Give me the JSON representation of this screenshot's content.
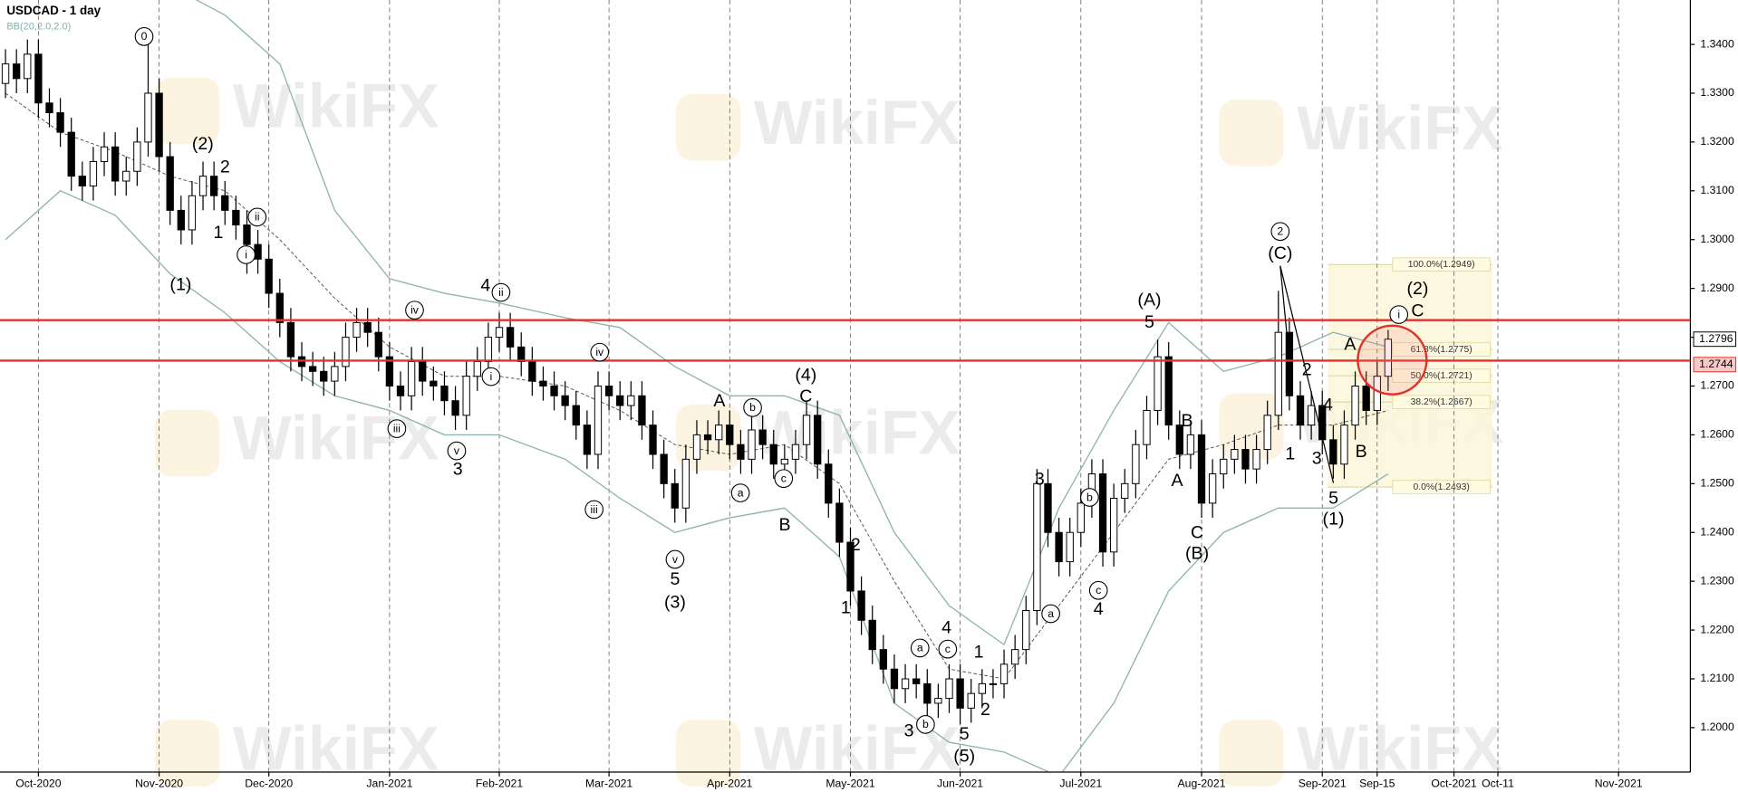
{
  "chart_data": {
    "type": "candlestick",
    "title": "USDCAD - 1 day",
    "indicator": "BB(20,2.0,2.0)",
    "watermark": "WikiFX",
    "categories": [
      null,
      null,
      null,
      "Oct-2020",
      null,
      null,
      null,
      null,
      null,
      null,
      null,
      null,
      null,
      null,
      "Nov-2020",
      null,
      null,
      null,
      null,
      null,
      null,
      null,
      null,
      null,
      "Dec-2020",
      null,
      null,
      null,
      null,
      null,
      null,
      null,
      null,
      null,
      null,
      "Jan-2021",
      null,
      null,
      null,
      null,
      null,
      null,
      null,
      null,
      null,
      "Feb-2021",
      null,
      null,
      null,
      null,
      null,
      null,
      null,
      null,
      null,
      "Mar-2021",
      null,
      null,
      null,
      null,
      null,
      null,
      null,
      null,
      null,
      null,
      "Apr-2021",
      null,
      null,
      null,
      null,
      null,
      null,
      null,
      null,
      null,
      null,
      "May-2021",
      null,
      null,
      null,
      null,
      null,
      null,
      null,
      null,
      null,
      "Jun-2021",
      null,
      null,
      null,
      null,
      null,
      null,
      null,
      null,
      null,
      null,
      "Jul-2021",
      null,
      null,
      null,
      null,
      null,
      null,
      null,
      null,
      null,
      null,
      "Aug-2021",
      null,
      null,
      null,
      null,
      null,
      null,
      null,
      null,
      null,
      null,
      "Sep-2021",
      null,
      null,
      null,
      null,
      "Sep-15",
      null,
      null,
      null,
      null,
      null,
      null,
      "Oct-2021",
      null,
      null,
      null,
      "Oct-11",
      null,
      null,
      null,
      null,
      null,
      null,
      null,
      null,
      null,
      null,
      "Nov-2021",
      null,
      null,
      null,
      null,
      null,
      null
    ],
    "open": [
      1.332,
      1.336,
      1.333,
      1.338,
      1.328,
      1.326,
      1.322,
      1.313,
      1.311,
      1.316,
      1.319,
      1.312,
      1.314,
      1.32,
      1.33,
      1.317,
      1.306,
      1.302,
      1.309,
      1.313,
      1.309,
      1.306,
      1.303,
      1.299,
      1.296,
      1.289,
      1.283,
      1.276,
      1.274,
      1.273,
      1.271,
      1.274,
      1.28,
      1.283,
      1.281,
      1.276,
      1.27,
      1.268,
      1.275,
      1.271,
      1.27,
      1.267,
      1.264,
      1.272,
      1.275,
      1.28,
      1.282,
      1.278,
      1.275,
      1.271,
      1.27,
      1.268,
      1.266,
      1.262,
      1.256,
      1.27,
      1.268,
      1.266,
      1.268,
      1.262,
      1.256,
      1.25,
      1.245,
      1.255,
      1.26,
      1.259,
      1.262,
      1.258,
      1.255,
      1.261,
      1.258,
      1.254,
      1.255,
      1.258,
      1.264,
      1.254,
      1.246,
      1.238,
      1.228,
      1.222,
      1.216,
      1.212,
      1.208,
      1.21,
      1.209,
      1.205,
      1.206,
      1.21,
      1.204,
      1.207,
      1.209,
      1.209,
      1.213,
      1.216,
      1.224,
      1.25,
      1.24,
      1.234,
      1.24,
      1.246,
      1.252,
      1.236,
      1.247,
      1.25,
      1.258,
      1.265,
      1.276,
      1.262,
      1.256,
      1.26,
      1.246,
      1.252,
      1.255,
      1.257,
      1.253,
      1.257,
      1.264,
      1.281,
      1.268,
      1.262,
      1.266,
      1.259,
      1.254,
      1.262,
      1.27,
      1.265,
      1.272,
      null,
      null,
      null,
      null,
      null,
      null,
      null,
      null,
      null,
      null,
      null,
      null,
      null,
      null,
      null,
      null,
      null,
      null,
      null,
      null,
      null,
      null,
      null,
      null,
      null,
      null,
      null
    ],
    "high": [
      1.339,
      1.339,
      1.341,
      1.341,
      1.331,
      1.329,
      1.325,
      1.316,
      1.319,
      1.322,
      1.322,
      1.317,
      1.323,
      1.34,
      1.333,
      1.32,
      1.309,
      1.312,
      1.316,
      1.316,
      1.312,
      1.309,
      1.306,
      1.302,
      1.299,
      1.292,
      1.286,
      1.279,
      1.277,
      1.276,
      1.277,
      1.283,
      1.286,
      1.286,
      1.284,
      1.279,
      1.273,
      1.278,
      1.278,
      1.274,
      1.273,
      1.27,
      1.275,
      1.278,
      1.283,
      1.285,
      1.285,
      1.281,
      1.278,
      1.274,
      1.273,
      1.271,
      1.269,
      1.265,
      1.273,
      1.273,
      1.271,
      1.271,
      1.271,
      1.265,
      1.259,
      1.253,
      1.258,
      1.263,
      1.263,
      1.265,
      1.265,
      1.261,
      1.264,
      1.264,
      1.261,
      1.258,
      1.261,
      1.267,
      1.267,
      1.257,
      1.249,
      1.241,
      1.231,
      1.225,
      1.219,
      1.215,
      1.213,
      1.213,
      1.212,
      1.209,
      1.213,
      1.213,
      1.21,
      1.212,
      1.212,
      1.216,
      1.219,
      1.227,
      1.253,
      1.253,
      1.243,
      1.243,
      1.249,
      1.255,
      1.255,
      1.25,
      1.253,
      1.261,
      1.268,
      1.2795,
      1.279,
      1.265,
      1.263,
      1.263,
      1.255,
      1.258,
      1.26,
      1.26,
      1.26,
      1.267,
      1.2895,
      1.284,
      1.271,
      1.269,
      1.269,
      1.262,
      1.265,
      1.273,
      1.273,
      1.275,
      1.2815,
      null,
      null,
      null,
      null,
      null,
      null,
      null,
      null,
      null,
      null,
      null,
      null,
      null,
      null,
      null,
      null,
      null,
      null,
      null,
      null,
      null,
      null,
      null,
      null,
      null,
      null,
      null
    ],
    "low": [
      1.329,
      1.33,
      1.33,
      1.325,
      1.323,
      1.319,
      1.31,
      1.308,
      1.308,
      1.313,
      1.309,
      1.309,
      1.311,
      1.317,
      1.314,
      1.303,
      1.299,
      1.299,
      1.306,
      1.306,
      1.303,
      1.3,
      1.293,
      1.293,
      1.286,
      1.28,
      1.273,
      1.271,
      1.27,
      1.268,
      1.268,
      1.271,
      1.277,
      1.278,
      1.273,
      1.267,
      1.265,
      1.265,
      1.268,
      1.267,
      1.264,
      1.261,
      1.261,
      1.269,
      1.272,
      1.277,
      1.275,
      1.272,
      1.268,
      1.267,
      1.265,
      1.263,
      1.259,
      1.253,
      1.253,
      1.265,
      1.263,
      1.263,
      1.259,
      1.253,
      1.247,
      1.242,
      1.242,
      1.252,
      1.256,
      1.256,
      1.255,
      1.252,
      1.252,
      1.255,
      1.251,
      1.251,
      1.252,
      1.255,
      1.251,
      1.243,
      1.235,
      1.225,
      1.219,
      1.213,
      1.209,
      1.205,
      1.205,
      1.206,
      1.202,
      1.202,
      1.203,
      1.2007,
      1.201,
      1.204,
      1.206,
      1.206,
      1.21,
      1.213,
      1.221,
      1.237,
      1.231,
      1.231,
      1.237,
      1.243,
      1.233,
      1.233,
      1.244,
      1.247,
      1.255,
      1.262,
      1.259,
      1.253,
      1.253,
      1.243,
      1.243,
      1.249,
      1.252,
      1.25,
      1.25,
      1.254,
      1.261,
      1.265,
      1.259,
      1.259,
      1.256,
      1.251,
      1.251,
      1.259,
      1.262,
      1.262,
      1.269,
      null,
      null,
      null,
      null,
      null,
      null,
      null,
      null,
      null,
      null,
      null,
      null,
      null,
      null,
      null,
      null,
      null,
      null,
      null,
      null,
      null,
      null,
      null,
      null,
      null,
      null,
      null
    ],
    "close": [
      1.336,
      1.333,
      1.338,
      1.328,
      1.326,
      1.322,
      1.313,
      1.311,
      1.316,
      1.319,
      1.312,
      1.314,
      1.32,
      1.33,
      1.317,
      1.306,
      1.302,
      1.309,
      1.313,
      1.309,
      1.306,
      1.303,
      1.299,
      1.296,
      1.289,
      1.283,
      1.276,
      1.274,
      1.273,
      1.271,
      1.274,
      1.28,
      1.283,
      1.281,
      1.276,
      1.27,
      1.268,
      1.275,
      1.271,
      1.27,
      1.267,
      1.264,
      1.272,
      1.275,
      1.28,
      1.282,
      1.278,
      1.275,
      1.271,
      1.27,
      1.268,
      1.266,
      1.262,
      1.256,
      1.27,
      1.268,
      1.266,
      1.268,
      1.262,
      1.256,
      1.25,
      1.245,
      1.255,
      1.26,
      1.259,
      1.262,
      1.258,
      1.255,
      1.261,
      1.258,
      1.254,
      1.255,
      1.258,
      1.264,
      1.254,
      1.246,
      1.238,
      1.228,
      1.222,
      1.216,
      1.212,
      1.208,
      1.21,
      1.209,
      1.205,
      1.206,
      1.21,
      1.204,
      1.207,
      1.209,
      1.209,
      1.213,
      1.216,
      1.224,
      1.25,
      1.24,
      1.234,
      1.24,
      1.246,
      1.252,
      1.236,
      1.247,
      1.25,
      1.258,
      1.265,
      1.276,
      1.262,
      1.256,
      1.26,
      1.246,
      1.252,
      1.255,
      1.257,
      1.253,
      1.257,
      1.264,
      1.281,
      1.268,
      1.262,
      1.266,
      1.259,
      1.254,
      1.262,
      1.27,
      1.265,
      1.272,
      1.2796,
      null,
      null,
      null,
      null,
      null,
      null,
      null,
      null,
      null,
      null,
      null,
      null,
      null,
      null,
      null,
      null,
      null,
      null,
      null,
      null,
      null,
      null,
      null,
      null,
      null,
      null,
      null
    ],
    "up_color": "#ffffff",
    "down_color": "#000000",
    "bands": {
      "color": "#8fb3b3",
      "middle_color": "#555555",
      "x": [
        0,
        5,
        10,
        15,
        20,
        25,
        30,
        35,
        40,
        45,
        51,
        56,
        61,
        66,
        71,
        76,
        81,
        86,
        91,
        96,
        101,
        106,
        111,
        116,
        121,
        126
      ],
      "upper": [
        1.352,
        1.355,
        1.356,
        1.352,
        1.346,
        1.336,
        1.306,
        1.292,
        1.289,
        1.287,
        1.284,
        1.282,
        1.274,
        1.268,
        1.268,
        1.264,
        1.24,
        1.225,
        1.217,
        1.245,
        1.265,
        1.283,
        1.273,
        1.276,
        1.281,
        1.278
      ],
      "middle": [
        1.33,
        1.322,
        1.318,
        1.313,
        1.31,
        1.3,
        1.288,
        1.278,
        1.272,
        1.272,
        1.27,
        1.265,
        1.258,
        1.256,
        1.258,
        1.25,
        1.23,
        1.212,
        1.21,
        1.225,
        1.24,
        1.255,
        1.258,
        1.262,
        1.262,
        1.265
      ],
      "lower": [
        1.3,
        1.31,
        1.305,
        1.293,
        1.285,
        1.275,
        1.268,
        1.265,
        1.26,
        1.26,
        1.255,
        1.247,
        1.24,
        1.243,
        1.245,
        1.235,
        1.205,
        1.197,
        1.195,
        1.19,
        1.205,
        1.228,
        1.24,
        1.245,
        1.245,
        1.252
      ]
    },
    "ylim": [
      1.1909,
      1.3491
    ],
    "yticks": [
      {
        "value": 1.2,
        "label": "1.2000"
      },
      {
        "value": 1.21,
        "label": "1.2100"
      },
      {
        "value": 1.22,
        "label": "1.2200"
      },
      {
        "value": 1.23,
        "label": "1.2300"
      },
      {
        "value": 1.24,
        "label": "1.2400"
      },
      {
        "value": 1.25,
        "label": "1.2500"
      },
      {
        "value": 1.26,
        "label": "1.2600"
      },
      {
        "value": 1.27,
        "label": "1.2700"
      },
      {
        "value": 1.28,
        "label": "1.2800"
      },
      {
        "value": 1.29,
        "label": "1.2900"
      },
      {
        "value": 1.3,
        "label": "1.3000"
      },
      {
        "value": 1.31,
        "label": "1.3100"
      },
      {
        "value": 1.32,
        "label": "1.3200"
      },
      {
        "value": 1.33,
        "label": "1.3300"
      },
      {
        "value": 1.34,
        "label": "1.3400"
      }
    ],
    "levels": [
      {
        "value": 1.2835,
        "color": "#e0322b"
      },
      {
        "value": 1.2752,
        "color": "#e0322b"
      }
    ],
    "price_labels": [
      {
        "value": 1.2796,
        "label": "1.2796"
      },
      {
        "value": 1.2744,
        "label": "1.2744"
      }
    ],
    "fibonacci": {
      "fill": "#fbf6d9",
      "color": "#d8d49a",
      "levels": [
        {
          "value": 1.2949,
          "label": "100.0%(1.2949)"
        },
        {
          "value": 1.2775,
          "label": "61.8%(1.2775)"
        },
        {
          "value": 1.2721,
          "label": "50.0%(1.2721)"
        },
        {
          "value": 1.2667,
          "label": "38.2%(1.2667)"
        },
        {
          "value": 1.2493,
          "label": "0.0%(1.2493)"
        }
      ]
    },
    "annotations": [
      "0",
      "(2)",
      "2",
      "1",
      "ii",
      "i",
      "(1)",
      "4",
      "ii",
      "iv",
      "i",
      "iii",
      "v",
      "3",
      "iv",
      "iii",
      "v",
      "5",
      "(3)",
      "A",
      "b",
      "(4)",
      "C",
      "a",
      "c",
      "B",
      "2",
      "1",
      "a",
      "4",
      "c",
      "1",
      "b",
      "3",
      "2",
      "5",
      "(5)",
      "3",
      "a",
      "4",
      "b",
      "c",
      "(A)",
      "5",
      "B",
      "A",
      "C",
      "(B)",
      "2",
      "(C)",
      "2",
      "4",
      "1",
      "3",
      "A",
      "B",
      "5",
      "(1)",
      "(2)",
      "i",
      "C"
    ]
  }
}
